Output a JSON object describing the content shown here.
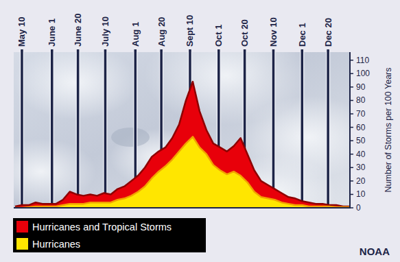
{
  "chart_data": {
    "type": "area",
    "y_label": "Number of Storms per 100 Years",
    "credit": "NOAA",
    "x": [
      125,
      130,
      135,
      140,
      145,
      150,
      155,
      160,
      165,
      170,
      175,
      180,
      185,
      190,
      195,
      200,
      205,
      210,
      215,
      220,
      225,
      230,
      235,
      240,
      245,
      250,
      255,
      260,
      265,
      270,
      275,
      280,
      285,
      290,
      295,
      300,
      305,
      310,
      315,
      320,
      325,
      330,
      335,
      340,
      345,
      350,
      355,
      360,
      365,
      370
    ],
    "xlim": [
      124,
      370
    ],
    "xticks": [
      {
        "value": 130,
        "label": "May 10"
      },
      {
        "value": 152,
        "label": "June 1"
      },
      {
        "value": 171,
        "label": "June 20"
      },
      {
        "value": 191,
        "label": "July 10"
      },
      {
        "value": 213,
        "label": "Aug 1"
      },
      {
        "value": 232,
        "label": "Aug 20"
      },
      {
        "value": 253,
        "label": "Sept 10"
      },
      {
        "value": 274,
        "label": "Oct 1"
      },
      {
        "value": 293,
        "label": "Oct 20"
      },
      {
        "value": 314,
        "label": "Nov 10"
      },
      {
        "value": 335,
        "label": "Dec 1"
      },
      {
        "value": 354,
        "label": "Dec 20"
      }
    ],
    "ylim": [
      0,
      116
    ],
    "yticks": [
      0,
      10,
      20,
      30,
      40,
      50,
      60,
      70,
      80,
      90,
      100,
      110
    ],
    "grid": true,
    "stacked": false,
    "legend": "bottom-left",
    "series": [
      {
        "name": "Hurricanes and Tropical Storms",
        "color": "#e8000a",
        "values": [
          1,
          2,
          2,
          4,
          3,
          3,
          3,
          6,
          12,
          10,
          9,
          10,
          9,
          11,
          10,
          14,
          16,
          20,
          24,
          30,
          38,
          42,
          45,
          52,
          62,
          80,
          94,
          72,
          58,
          48,
          45,
          42,
          46,
          52,
          40,
          28,
          20,
          17,
          14,
          11,
          8,
          7,
          5,
          4,
          3,
          3,
          2,
          2,
          1,
          1
        ]
      },
      {
        "name": "Hurricanes",
        "color": "#ffe600",
        "values": [
          0,
          0,
          0.5,
          1,
          1,
          1,
          1,
          2,
          3,
          3,
          3,
          4,
          4,
          4,
          4,
          6,
          7,
          9,
          12,
          16,
          22,
          27,
          31,
          36,
          42,
          48,
          53,
          45,
          40,
          32,
          28,
          25,
          27,
          24,
          19,
          12,
          8,
          7,
          6,
          4,
          3,
          2,
          2,
          1,
          1,
          1,
          1,
          0.5,
          0.5,
          0.5
        ]
      }
    ]
  }
}
